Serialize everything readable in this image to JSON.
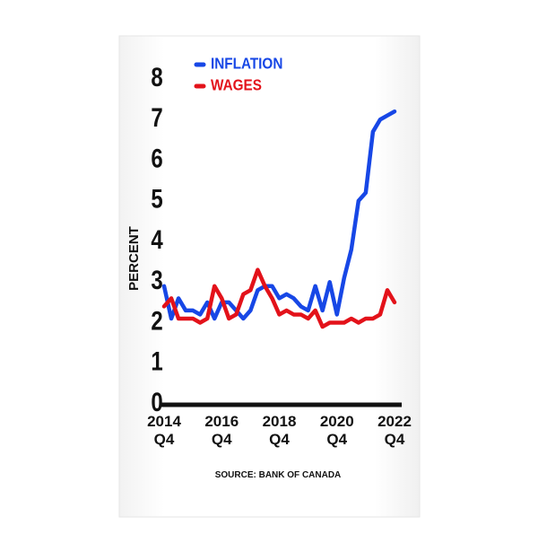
{
  "chart_data": {
    "type": "line",
    "y_axis_label": "PERCENT",
    "source": "SOURCE: BANK OF CANADA",
    "categories": [
      "2014 Q4",
      null,
      null,
      null,
      null,
      null,
      null,
      null,
      "2016 Q4",
      null,
      null,
      null,
      null,
      null,
      null,
      null,
      "2018 Q4",
      null,
      null,
      null,
      null,
      null,
      null,
      null,
      "2020 Q4",
      null,
      null,
      null,
      null,
      null,
      null,
      null,
      "2022 Q4"
    ],
    "series": [
      {
        "name": "INFLATION",
        "color": "#1747e6",
        "values": [
          2.9,
          2.1,
          2.6,
          2.3,
          2.3,
          2.2,
          2.5,
          2.1,
          2.5,
          2.5,
          2.3,
          2.1,
          2.3,
          2.8,
          2.9,
          2.9,
          2.6,
          2.7,
          2.6,
          2.4,
          2.3,
          2.9,
          2.3,
          3.0,
          2.2,
          3.1,
          3.8,
          5.0,
          5.2,
          6.7,
          7.0,
          7.1,
          7.2
        ]
      },
      {
        "name": "WAGES",
        "color": "#e3121a",
        "values": [
          2.4,
          2.6,
          2.1,
          2.1,
          2.1,
          2.0,
          2.1,
          2.9,
          2.6,
          2.1,
          2.2,
          2.7,
          2.8,
          3.3,
          2.9,
          2.6,
          2.2,
          2.3,
          2.2,
          2.2,
          2.1,
          2.3,
          1.9,
          2.0,
          2.0,
          2.0,
          2.1,
          2.0,
          2.1,
          2.1,
          2.2,
          2.8,
          2.5
        ]
      }
    ],
    "ylim": [
      0,
      8
    ],
    "yticks": [
      0,
      1,
      2,
      3,
      4,
      5,
      6,
      7,
      8
    ],
    "legend": "top-left"
  }
}
